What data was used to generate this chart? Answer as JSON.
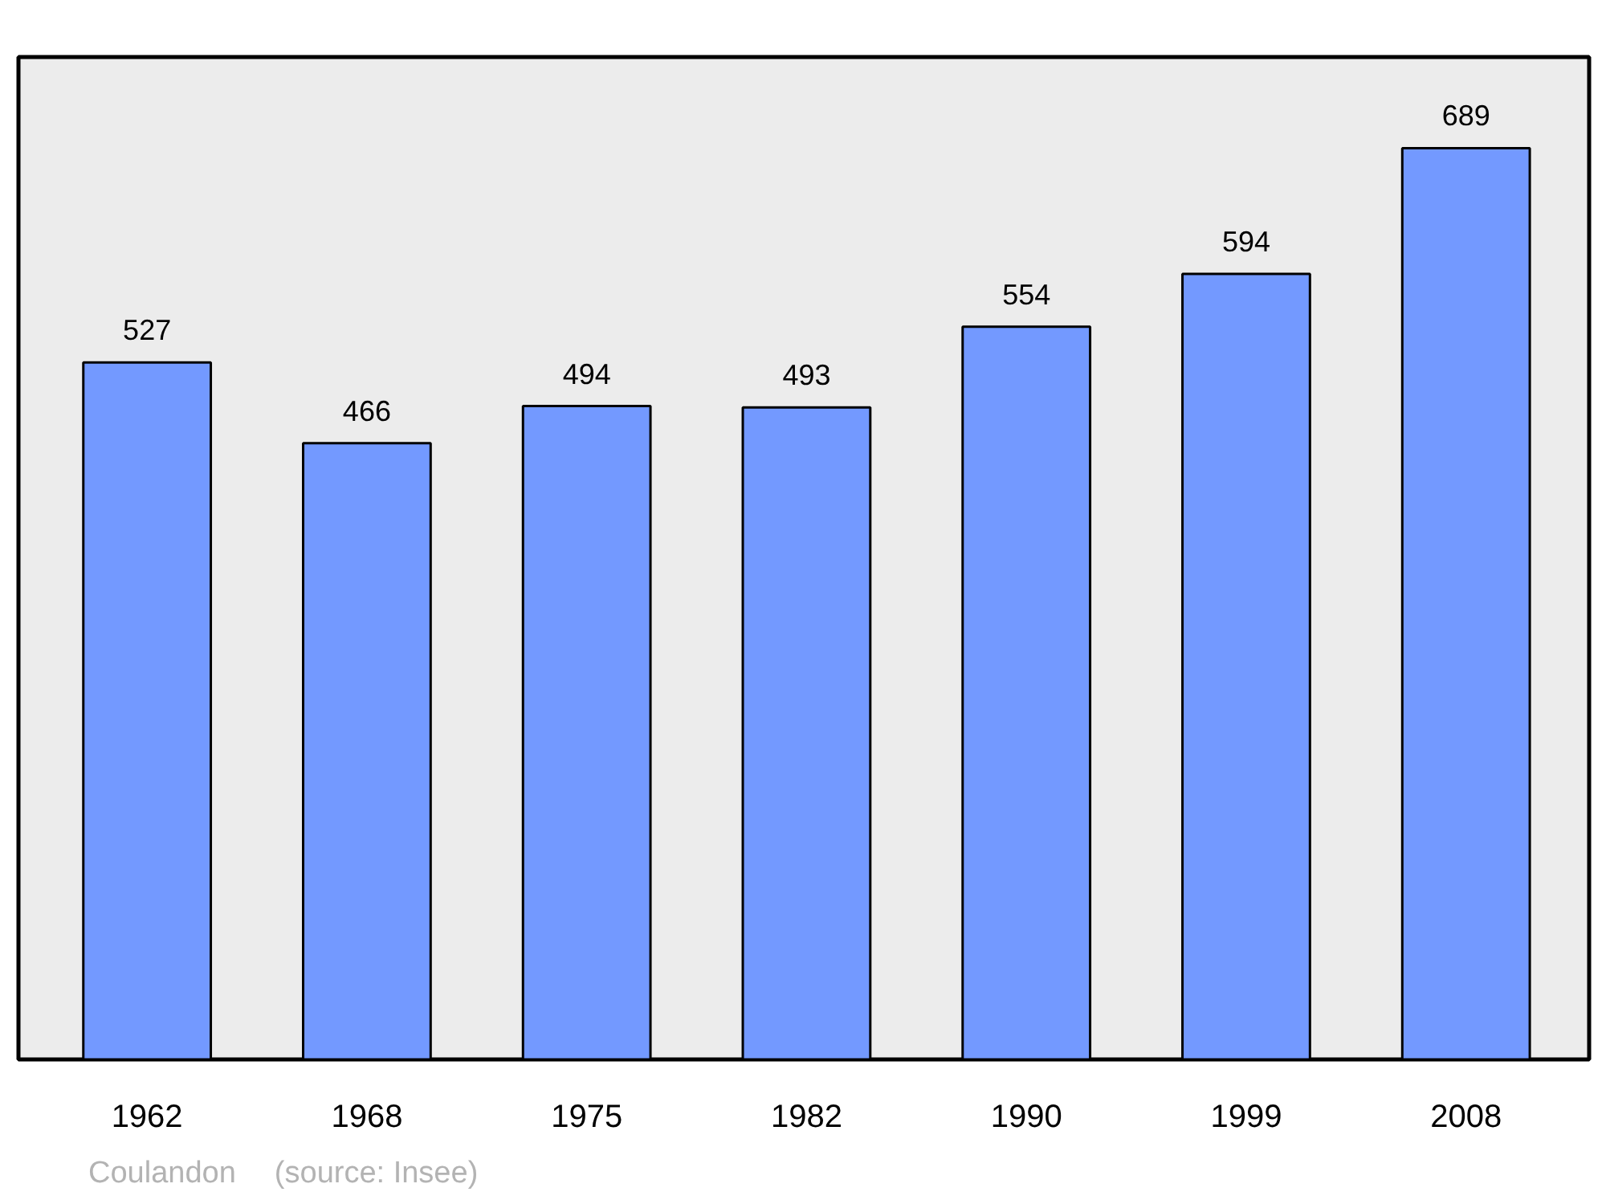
{
  "chart_data": {
    "type": "bar",
    "categories": [
      "1962",
      "1968",
      "1975",
      "1982",
      "1990",
      "1999",
      "2008"
    ],
    "values": [
      527,
      466,
      494,
      493,
      554,
      594,
      689
    ],
    "color": "#7399ff",
    "data_labels": true,
    "grid": false,
    "tick_labels": "x",
    "annotations": [
      "Coulandon",
      "(source: Insee)"
    ]
  }
}
